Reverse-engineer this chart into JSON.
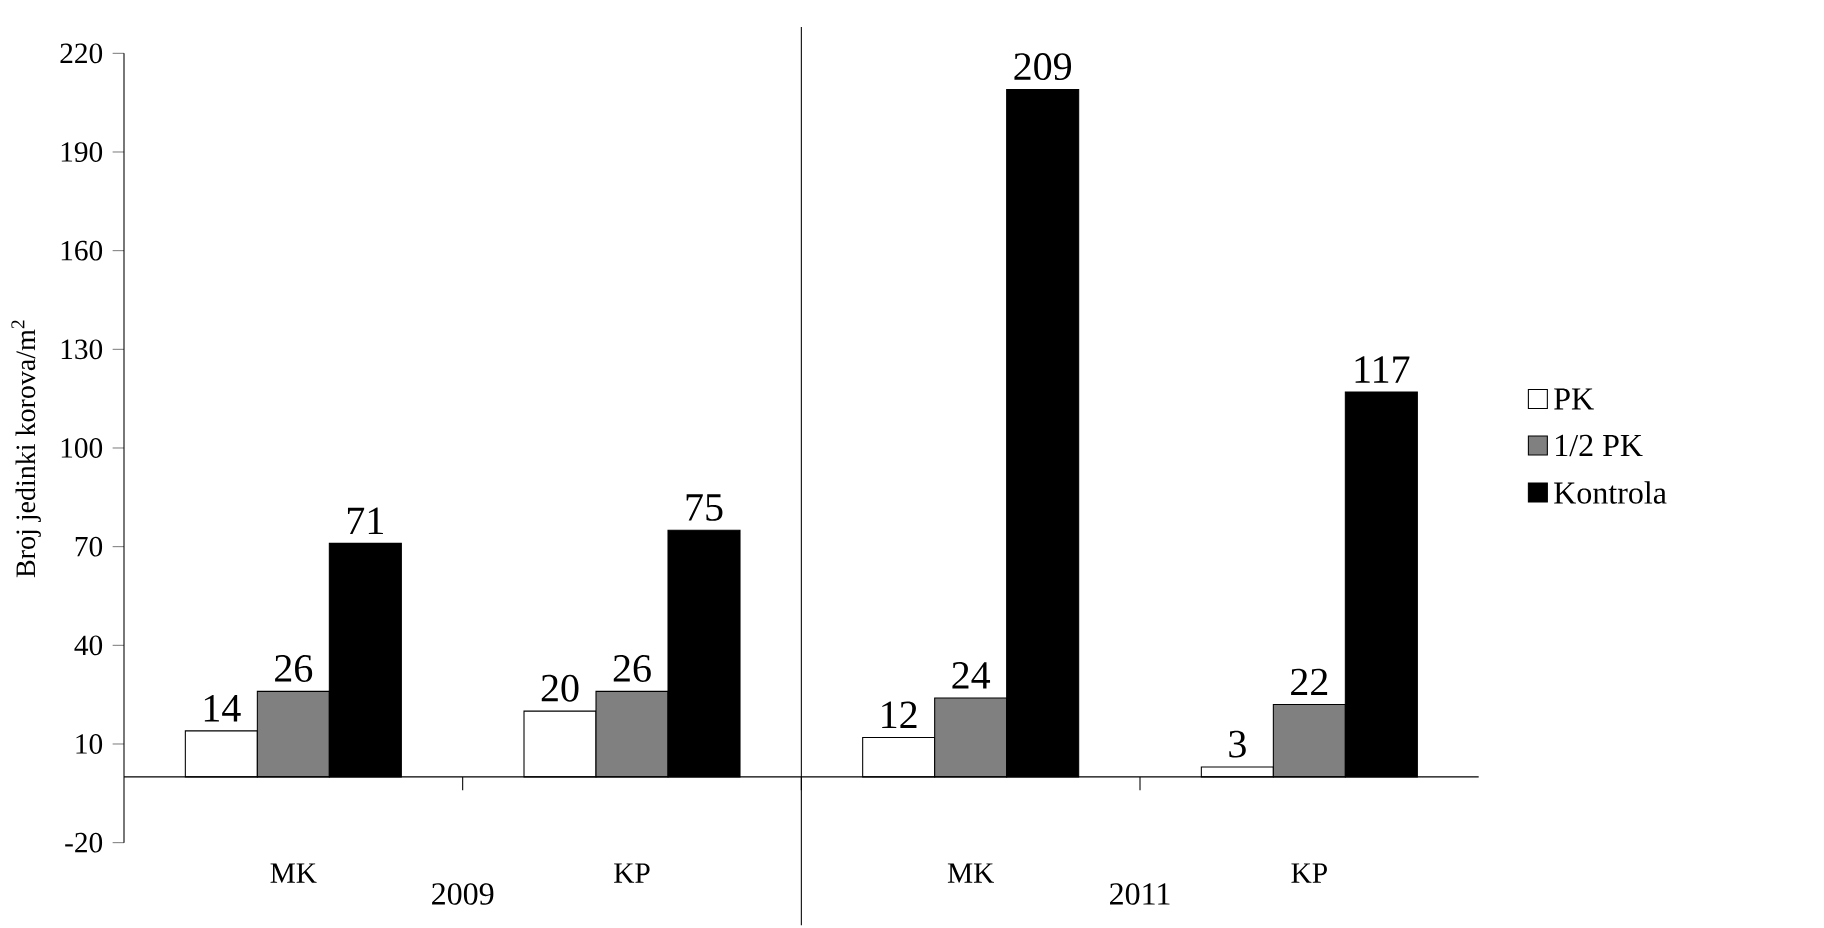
{
  "chart_data": {
    "type": "bar",
    "ylabel": "Broj jedinki korova/m$^{2}$",
    "categories": [
      "MK",
      "KP",
      "MK",
      "KP"
    ],
    "series": [
      {
        "name": "PK",
        "color": "#ffffff",
        "values": [
          14,
          20,
          12,
          3
        ]
      },
      {
        "name": "1/2 PK",
        "color": "#808080",
        "values": [
          26,
          26,
          24,
          22
        ]
      },
      {
        "name": "Kontrola",
        "color": "#000000",
        "values": [
          71,
          75,
          209,
          117
        ]
      }
    ],
    "ylim": [
      -20,
      220
    ],
    "yticks": [
      -20,
      10,
      40,
      70,
      100,
      130,
      160,
      190,
      220
    ],
    "data_labels": true,
    "legend": "right",
    "grid": false,
    "annotations": [
      {
        "text": "2009"
      },
      {
        "text": "2011"
      }
    ]
  }
}
